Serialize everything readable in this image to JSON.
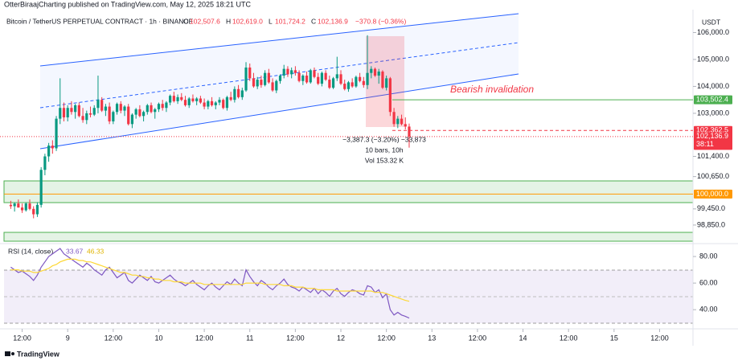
{
  "header": {
    "publisher": "OtterBiraajCharting published on TradingView.com, May 12, 2025 18:21 UTC",
    "symbol": "Bitcoin / TetherUS PERPETUAL CONTRACT · 1h · BINANCE",
    "ohlc_keys": [
      "O",
      "H",
      "L",
      "C"
    ],
    "ohlc_values": [
      "102,507.6",
      "102,619.0",
      "101,724.2",
      "102,136.9"
    ],
    "change": "−370.8 (−0.36%)",
    "currency": "USDT"
  },
  "footer": {
    "brand": "TradingView"
  },
  "chart_data": [
    {
      "type": "candlestick",
      "up_color": "#089981",
      "down_color": "#f23645",
      "candles": [
        [
          99600,
          99750,
          99450,
          99550
        ],
        [
          99550,
          99700,
          99350,
          99650
        ],
        [
          99650,
          99800,
          99500,
          99500
        ],
        [
          99500,
          99650,
          99300,
          99400
        ],
        [
          99400,
          99700,
          99350,
          99650
        ],
        [
          99650,
          99800,
          99400,
          99450
        ],
        [
          99450,
          99550,
          99100,
          99250
        ],
        [
          99250,
          99700,
          99150,
          99600
        ],
        [
          99600,
          101000,
          99500,
          100900
        ],
        [
          100900,
          101500,
          100700,
          101400
        ],
        [
          101400,
          101900,
          101200,
          101800
        ],
        [
          101800,
          102000,
          101500,
          101700
        ],
        [
          101700,
          102900,
          101600,
          102800
        ],
        [
          102800,
          104300,
          102600,
          103200
        ],
        [
          103200,
          103400,
          102700,
          102850
        ],
        [
          102850,
          103300,
          102700,
          103200
        ],
        [
          103200,
          103450,
          102950,
          103050
        ],
        [
          103050,
          103350,
          102800,
          103300
        ],
        [
          103300,
          103400,
          102850,
          102900
        ],
        [
          102900,
          103200,
          102650,
          102750
        ],
        [
          102750,
          103100,
          102600,
          103000
        ],
        [
          103000,
          103250,
          102850,
          102950
        ],
        [
          102950,
          103300,
          102900,
          103200
        ],
        [
          103200,
          104400,
          103000,
          103500
        ],
        [
          103500,
          103600,
          103050,
          103100
        ],
        [
          103100,
          103350,
          102900,
          103250
        ],
        [
          103250,
          103400,
          102600,
          102700
        ],
        [
          102700,
          103100,
          102600,
          103050
        ],
        [
          103050,
          103400,
          102950,
          103350
        ],
        [
          103350,
          103450,
          103000,
          103100
        ],
        [
          103100,
          103300,
          102900,
          103250
        ],
        [
          103250,
          103350,
          102550,
          102600
        ],
        [
          102600,
          103000,
          102450,
          102950
        ],
        [
          102950,
          103200,
          102800,
          103150
        ],
        [
          103150,
          103300,
          102850,
          102900
        ],
        [
          102900,
          103100,
          102700,
          103050
        ],
        [
          103050,
          103350,
          102950,
          103300
        ],
        [
          103300,
          103400,
          103000,
          103050
        ],
        [
          103050,
          103200,
          102800,
          103150
        ],
        [
          103150,
          103400,
          103050,
          103350
        ],
        [
          103350,
          103500,
          103100,
          103200
        ],
        [
          103200,
          103450,
          103050,
          103400
        ],
        [
          103400,
          103700,
          103300,
          103650
        ],
        [
          103650,
          103800,
          103400,
          103450
        ],
        [
          103450,
          103700,
          103350,
          103600
        ],
        [
          103600,
          103750,
          103450,
          103500
        ],
        [
          103500,
          103650,
          103250,
          103300
        ],
        [
          103300,
          103600,
          103200,
          103550
        ],
        [
          103550,
          103700,
          103400,
          103450
        ],
        [
          103450,
          103600,
          103300,
          103550
        ],
        [
          103550,
          103650,
          103350,
          103400
        ],
        [
          103400,
          103550,
          103150,
          103250
        ],
        [
          103250,
          103500,
          103150,
          103450
        ],
        [
          103450,
          103600,
          103250,
          103300
        ],
        [
          103300,
          103450,
          103150,
          103400
        ],
        [
          103400,
          103600,
          103300,
          103500
        ],
        [
          103500,
          103550,
          103150,
          103200
        ],
        [
          103200,
          103650,
          103100,
          103600
        ],
        [
          103600,
          103800,
          103450,
          103500
        ],
        [
          103500,
          104000,
          103400,
          103900
        ],
        [
          103900,
          104050,
          103550,
          103600
        ],
        [
          103600,
          103950,
          103500,
          103850
        ],
        [
          103850,
          104900,
          103800,
          104700
        ],
        [
          104700,
          104850,
          104200,
          104300
        ],
        [
          104300,
          104500,
          103950,
          104000
        ],
        [
          104000,
          104350,
          103900,
          104250
        ],
        [
          104250,
          104400,
          103950,
          104050
        ],
        [
          104050,
          104600,
          104000,
          104500
        ],
        [
          104500,
          104650,
          104100,
          104150
        ],
        [
          104150,
          104300,
          103800,
          103850
        ],
        [
          103850,
          104250,
          103750,
          104200
        ],
        [
          104200,
          104450,
          104100,
          104400
        ],
        [
          104400,
          104800,
          104300,
          104650
        ],
        [
          104650,
          104750,
          104350,
          104450
        ],
        [
          104450,
          104700,
          104300,
          104600
        ],
        [
          104600,
          104750,
          104400,
          104500
        ],
        [
          104500,
          104600,
          104150,
          104200
        ],
        [
          104200,
          104450,
          104050,
          104400
        ],
        [
          104400,
          104550,
          104100,
          104150
        ],
        [
          104150,
          104650,
          104100,
          104600
        ],
        [
          104600,
          104700,
          104300,
          104350
        ],
        [
          104350,
          104500,
          104050,
          104100
        ],
        [
          104100,
          104550,
          104000,
          104500
        ],
        [
          104500,
          104600,
          104200,
          104250
        ],
        [
          104250,
          104400,
          103900,
          103950
        ],
        [
          103950,
          104350,
          103900,
          104300
        ],
        [
          104300,
          105100,
          104200,
          104450
        ],
        [
          104450,
          104600,
          104050,
          104100
        ],
        [
          104100,
          104250,
          103850,
          103900
        ],
        [
          103900,
          104200,
          103800,
          104150
        ],
        [
          104150,
          104300,
          103950,
          104000
        ],
        [
          104000,
          104400,
          103950,
          104350
        ],
        [
          104350,
          104500,
          104150,
          104200
        ],
        [
          104200,
          104350,
          103950,
          104050
        ],
        [
          104050,
          105900,
          103900,
          104500
        ],
        [
          104500,
          104750,
          104300,
          104650
        ],
        [
          104650,
          104700,
          104350,
          104400
        ],
        [
          104400,
          104650,
          104100,
          104550
        ],
        [
          104550,
          104600,
          103900,
          103950
        ],
        [
          103950,
          104400,
          103850,
          104300
        ],
        [
          104300,
          104350,
          102900,
          103050
        ],
        [
          103050,
          103200,
          102500,
          102600
        ],
        [
          102600,
          102900,
          102450,
          102800
        ],
        [
          102800,
          102950,
          102550,
          102600
        ],
        [
          102600,
          102850,
          102400,
          102507.6
        ],
        [
          102507.6,
          102619,
          101724.2,
          102136.9
        ]
      ],
      "ylim": [
        98250,
        106850
      ],
      "yticks": [
        {
          "value": 106000,
          "label": "106,000.0"
        },
        {
          "value": 105000,
          "label": "105,000.0"
        },
        {
          "value": 104000,
          "label": "104,000.0"
        },
        {
          "value": 103000,
          "label": "103,000.0"
        },
        {
          "value": 101400,
          "label": "101,400.0"
        },
        {
          "value": 100650,
          "label": "100,650.0"
        },
        {
          "value": 99450,
          "label": "99,450.0"
        },
        {
          "value": 98850,
          "label": "98,850.0"
        }
      ],
      "xlim": [
        -2.84,
        179.8
      ],
      "xticks": [
        {
          "value": 3,
          "label": "12:00"
        },
        {
          "value": 15,
          "label": "9"
        },
        {
          "value": 27,
          "label": "12:00"
        },
        {
          "value": 39,
          "label": "10"
        },
        {
          "value": 51,
          "label": "12:00"
        },
        {
          "value": 63,
          "label": "11"
        },
        {
          "value": 75,
          "label": "12:00"
        },
        {
          "value": 87,
          "label": "12"
        },
        {
          "value": 99,
          "label": "12:00"
        },
        {
          "value": 111,
          "label": "13"
        },
        {
          "value": 123,
          "label": "12:00"
        },
        {
          "value": 135,
          "label": "14"
        },
        {
          "value": 147,
          "label": "12:00"
        },
        {
          "value": 159,
          "label": "15"
        },
        {
          "value": 171,
          "label": "12:00"
        }
      ],
      "levels": [
        {
          "value": 103502.4,
          "label": "103,502.4",
          "color": "#4caf50",
          "style": "solid"
        },
        {
          "value": 102362.5,
          "label": "102,362.5",
          "color": "#f23645",
          "style": "dashed"
        },
        {
          "value": 102136.9,
          "label": "102,136.9",
          "color": "#f23645",
          "style": "dotted",
          "countdown": "38:11"
        },
        {
          "value": 100000,
          "label": "100,000.0",
          "color": "#ff9800",
          "style": "solid"
        }
      ],
      "annotations": {
        "invalidation": "Bearish invalidation",
        "measure": [
          "−3,387.3 (−3.20%) −33,873",
          "10 bars, 10h",
          "Vol 153.32 K"
        ]
      }
    },
    {
      "type": "line",
      "title": "RSI (14, close)",
      "series": [
        {
          "name": "RSI",
          "color": "#7e57c2",
          "values": [
            72,
            70,
            68,
            69,
            67,
            65,
            62,
            66,
            72,
            76,
            80,
            82,
            84,
            86,
            82,
            80,
            78,
            76,
            74,
            72,
            75,
            73,
            70,
            68,
            66,
            70,
            72,
            68,
            64,
            66,
            68,
            62,
            60,
            63,
            66,
            64,
            62,
            65,
            61,
            60,
            62,
            64,
            66,
            63,
            61,
            60,
            58,
            60,
            62,
            59,
            57,
            55,
            58,
            60,
            57,
            55,
            58,
            61,
            59,
            63,
            60,
            58,
            70,
            65,
            61,
            58,
            62,
            60,
            57,
            55,
            58,
            60,
            63,
            59,
            57,
            56,
            54,
            57,
            55,
            53,
            56,
            52,
            55,
            53,
            50,
            54,
            56,
            52,
            50,
            53,
            55,
            54,
            52,
            51,
            58,
            57,
            53,
            55,
            49,
            52,
            40,
            36,
            38,
            36,
            35,
            33.67
          ]
        },
        {
          "name": "RSI-based MA",
          "color": "#fdd835",
          "values": [
            70,
            70,
            70,
            69,
            69,
            69,
            68,
            68,
            69,
            70,
            71,
            73,
            74,
            76,
            77,
            78,
            78,
            78,
            77,
            77,
            76,
            76,
            75,
            74,
            73,
            72,
            71,
            70,
            69,
            68,
            68,
            67,
            66,
            66,
            65,
            65,
            64,
            64,
            63,
            63,
            62,
            62,
            62,
            61,
            61,
            61,
            60,
            60,
            60,
            60,
            60,
            59,
            59,
            59,
            59,
            59,
            59,
            59,
            59,
            59,
            59,
            59,
            60,
            60,
            60,
            60,
            60,
            59,
            59,
            59,
            59,
            59,
            58,
            58,
            58,
            57,
            57,
            57,
            56,
            56,
            56,
            55,
            55,
            55,
            55,
            55,
            54,
            54,
            54,
            54,
            54,
            54,
            54,
            54,
            54,
            54,
            53,
            53,
            53,
            52,
            51,
            50,
            49,
            48,
            47,
            46.33
          ]
        }
      ],
      "ylim": [
        28,
        88.5
      ],
      "yticks": [
        {
          "value": 80,
          "label": "80.00"
        },
        {
          "value": 60,
          "label": "60.00"
        },
        {
          "value": 40,
          "label": "40.00"
        }
      ]
    }
  ]
}
